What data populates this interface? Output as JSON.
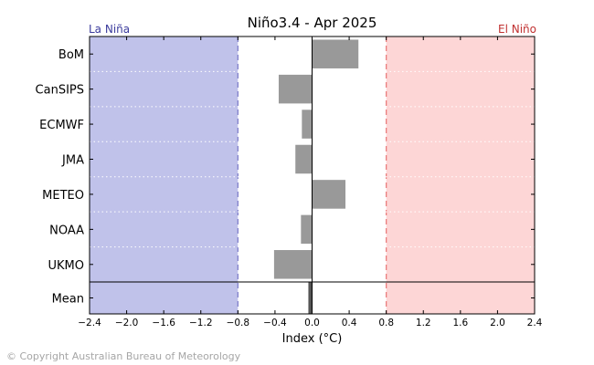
{
  "chart_data": {
    "type": "bar",
    "orientation": "horizontal",
    "title": "Niño3.4 - Apr 2025",
    "xlabel": "Index (°C)",
    "ylabel": "",
    "xlim": [
      -2.4,
      2.4
    ],
    "xticks": [
      -2.4,
      -2.0,
      -1.6,
      -1.2,
      -0.8,
      -0.4,
      0.0,
      0.4,
      0.8,
      1.2,
      1.6,
      2.0,
      2.4
    ],
    "xtick_labels": [
      "−2.4",
      "−2.0",
      "−1.6",
      "−1.2",
      "−0.8",
      "−0.4",
      "0.0",
      "0.4",
      "0.8",
      "1.2",
      "1.6",
      "2.0",
      "2.4"
    ],
    "categories": [
      "BoM",
      "CanSIPS",
      "ECMWF",
      "JMA",
      "METEO",
      "NOAA",
      "UKMO",
      "Mean"
    ],
    "values": [
      0.5,
      -0.36,
      -0.11,
      -0.18,
      0.36,
      -0.12,
      -0.41,
      -0.04
    ],
    "la_nina": {
      "label": "La Niña",
      "threshold": -0.8,
      "fill": "#c0c2ea",
      "line": "#7a7ac8",
      "text_color": "#3b3b9c"
    },
    "el_nino": {
      "label": "El Niño",
      "threshold": 0.8,
      "fill": "#fdd6d6",
      "line": "#e87575",
      "text_color": "#c03030"
    },
    "bar_color": "#999999",
    "mean_bar_color": "#555555",
    "grid": true
  },
  "footer": {
    "copyright": "© Copyright Australian Bureau of Meteorology"
  }
}
